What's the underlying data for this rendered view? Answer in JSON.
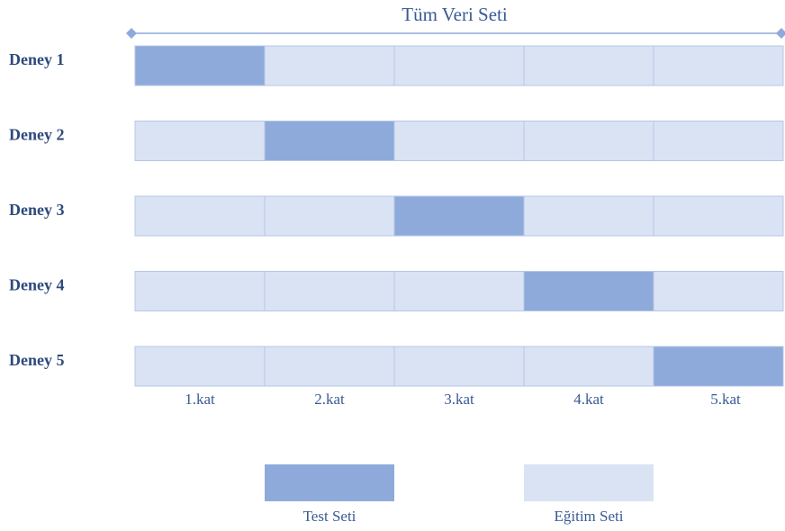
{
  "title": "Tüm Veri Seti",
  "rows": [
    "Deney 1",
    "Deney 2",
    "Deney 3",
    "Deney 4",
    "Deney 5"
  ],
  "folds": [
    "1.kat",
    "2.kat",
    "3.kat",
    "4.kat",
    "5.kat"
  ],
  "legend": {
    "test": "Test Seti",
    "train": "Eğitim Seti"
  }
}
